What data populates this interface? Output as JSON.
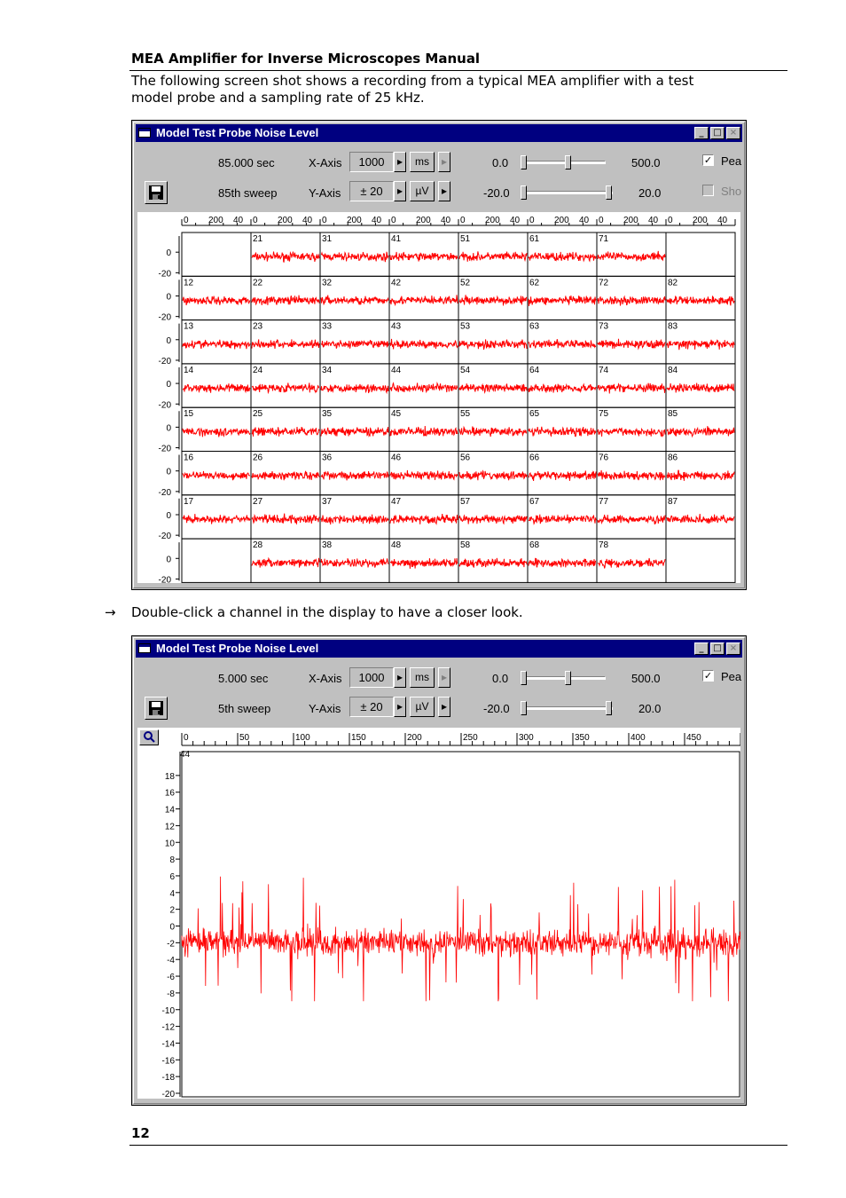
{
  "document": {
    "header": "MEA Amplifier for Inverse Microscopes Manual",
    "intro": "The following screen shot shows a recording from a typical MEA amplifier with a test model probe and a sampling rate of 25 kHz.",
    "instruction_arrow": "→",
    "instruction": "Double-click a channel in the display to have a closer look.",
    "page_number": "12"
  },
  "window1": {
    "title": "Model Test Probe Noise Level",
    "time": "85.000 sec",
    "sweep": "85th sweep",
    "x_axis_label": "X-Axis",
    "y_axis_label": "Y-Axis",
    "x_value": "1000",
    "y_value": "± 20",
    "x_unit": "ms",
    "y_unit": "µV",
    "x_slider_min": "0.0",
    "x_slider_max": "500.0",
    "y_slider_min": "-20.0",
    "y_slider_max": "20.0",
    "check1_label": "Pea",
    "check2_label": "Sho",
    "check1_checked": true,
    "check2_checked": false,
    "x_tick_labels": [
      "0",
      "200",
      "40",
      "0",
      "200",
      "40",
      "0",
      "200",
      "40",
      "0",
      "200",
      "40",
      "0",
      "200",
      "40",
      "0",
      "200",
      "40",
      "0",
      "200",
      "40",
      "0",
      "200",
      "40"
    ],
    "y_tick_labels": [
      "0",
      "-20"
    ],
    "rows": [
      [
        "",
        "21",
        "31",
        "41",
        "51",
        "61",
        "71",
        ""
      ],
      [
        "12",
        "22",
        "32",
        "42",
        "52",
        "62",
        "72",
        "82"
      ],
      [
        "13",
        "23",
        "33",
        "43",
        "53",
        "63",
        "73",
        "83"
      ],
      [
        "14",
        "24",
        "34",
        "44",
        "54",
        "64",
        "74",
        "84"
      ],
      [
        "15",
        "25",
        "35",
        "45",
        "55",
        "65",
        "75",
        "85"
      ],
      [
        "16",
        "26",
        "36",
        "46",
        "56",
        "66",
        "76",
        "86"
      ],
      [
        "17",
        "27",
        "37",
        "47",
        "57",
        "67",
        "77",
        "87"
      ],
      [
        "",
        "28",
        "38",
        "48",
        "58",
        "68",
        "78",
        ""
      ]
    ]
  },
  "window2": {
    "title": "Model Test Probe Noise Level",
    "time": "5.000 sec",
    "sweep": "5th sweep",
    "x_axis_label": "X-Axis",
    "y_axis_label": "Y-Axis",
    "x_value": "1000",
    "y_value": "± 20",
    "x_unit": "ms",
    "y_unit": "µV",
    "x_slider_min": "0.0",
    "x_slider_max": "500.0",
    "y_slider_min": "-20.0",
    "y_slider_max": "20.0",
    "check1_label": "Pea",
    "check1_checked": true,
    "channel_label": "44"
  },
  "chart_data": [
    {
      "type": "line",
      "title": "",
      "xlim": [
        0,
        500
      ],
      "ylim": [
        -20,
        20
      ],
      "layout": "8x8 channel grid (corners empty)",
      "trace_color": "#ff0000",
      "noise_amplitude_uV": 4
    },
    {
      "type": "line",
      "title": "",
      "x_ticks": [
        0,
        50,
        100,
        150,
        200,
        250,
        300,
        350,
        400,
        450
      ],
      "y_ticks": [
        18,
        16,
        14,
        12,
        10,
        8,
        6,
        4,
        2,
        0,
        -2,
        -4,
        -6,
        -8,
        -10,
        -12,
        -14,
        -16,
        -18,
        -20
      ],
      "x_tick_labels": [
        "0",
        "50",
        "100",
        "150",
        "200",
        "250",
        "300",
        "350",
        "400",
        "450"
      ],
      "y_tick_labels": [
        "18",
        "16",
        "14",
        "12",
        "10",
        "8",
        "6",
        "4",
        "2",
        "0",
        "-2",
        "-4",
        "-6",
        "-8",
        "-10",
        "-12",
        "-14",
        "-16",
        "-18",
        "-20"
      ],
      "xlim": [
        0,
        500
      ],
      "ylim": [
        -20,
        20
      ],
      "trace_color": "#ff0000",
      "noise_center_uV": -2,
      "noise_range_uV": [
        -9,
        6
      ]
    }
  ]
}
